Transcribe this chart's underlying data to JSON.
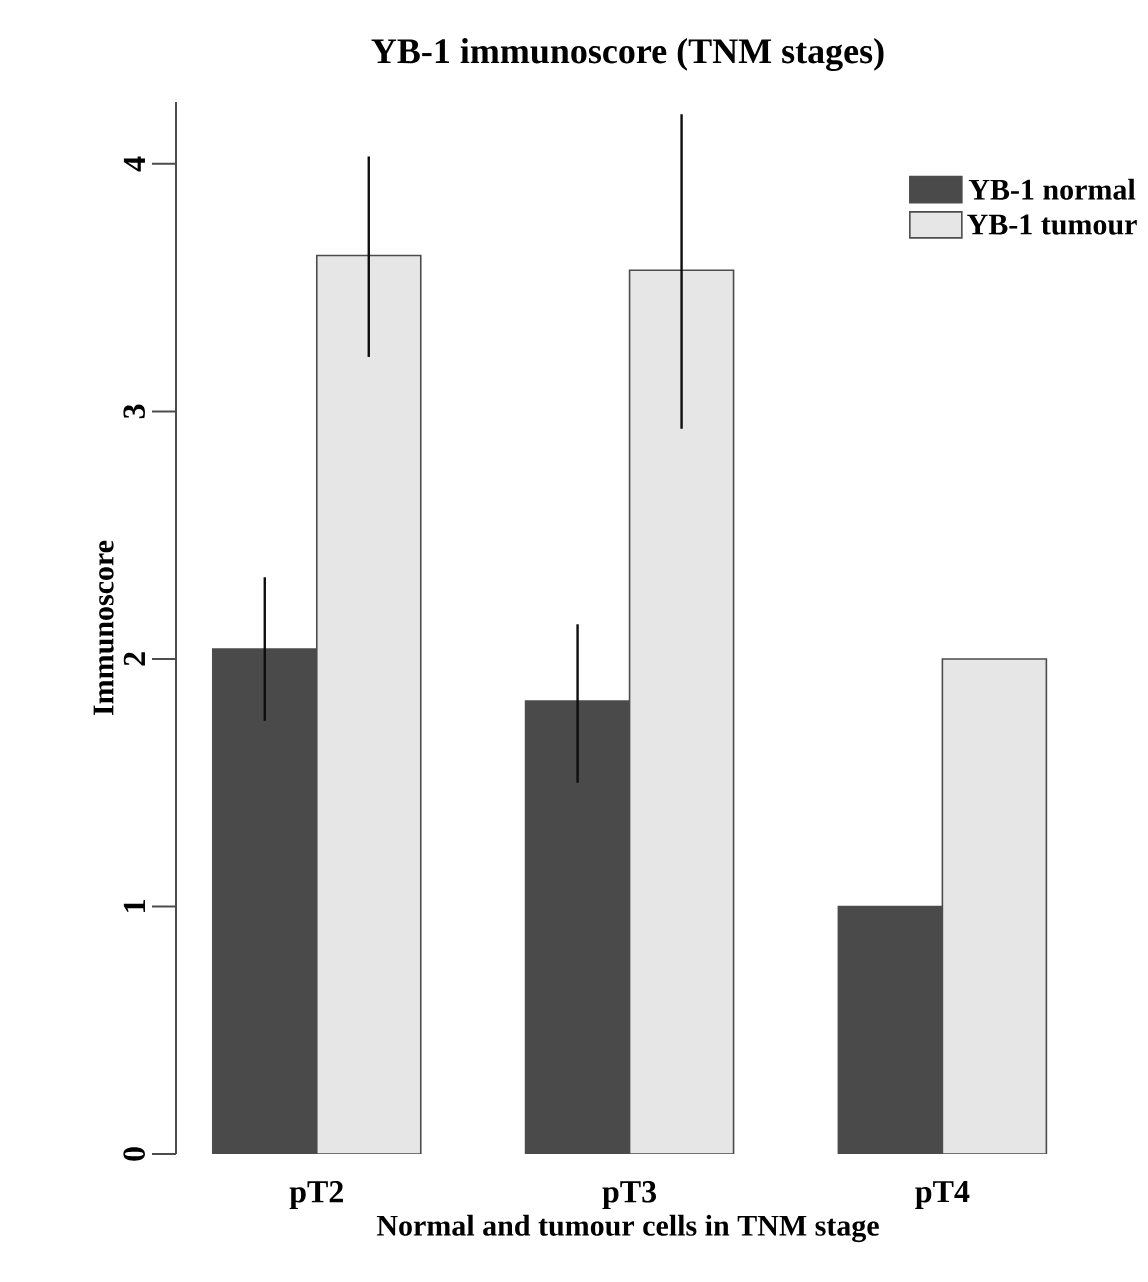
{
  "chart_data": {
    "type": "bar",
    "title": "YB-1 immunoscore (TNM stages)",
    "xlabel": "Normal and tumour cells in TNM stage",
    "ylabel": "Immunoscore",
    "categories": [
      "pT2",
      "pT3",
      "pT4"
    ],
    "series": [
      {
        "name": "YB-1 normal",
        "color": "#4a4a4a",
        "values": [
          2.04,
          1.83,
          1
        ],
        "errors": [
          [
            1.75,
            2.33
          ],
          [
            1.5,
            2.14
          ],
          null
        ]
      },
      {
        "name": "YB-1 tumour",
        "color": "#e6e6e6",
        "values": [
          3.63,
          3.57,
          2
        ],
        "errors": [
          [
            3.22,
            4.03
          ],
          [
            2.93,
            4.2
          ],
          null
        ]
      }
    ],
    "ylim": [
      0,
      4.25
    ],
    "yticks": [
      0,
      1,
      2,
      3,
      4
    ],
    "legend": "top right",
    "grid": false
  }
}
